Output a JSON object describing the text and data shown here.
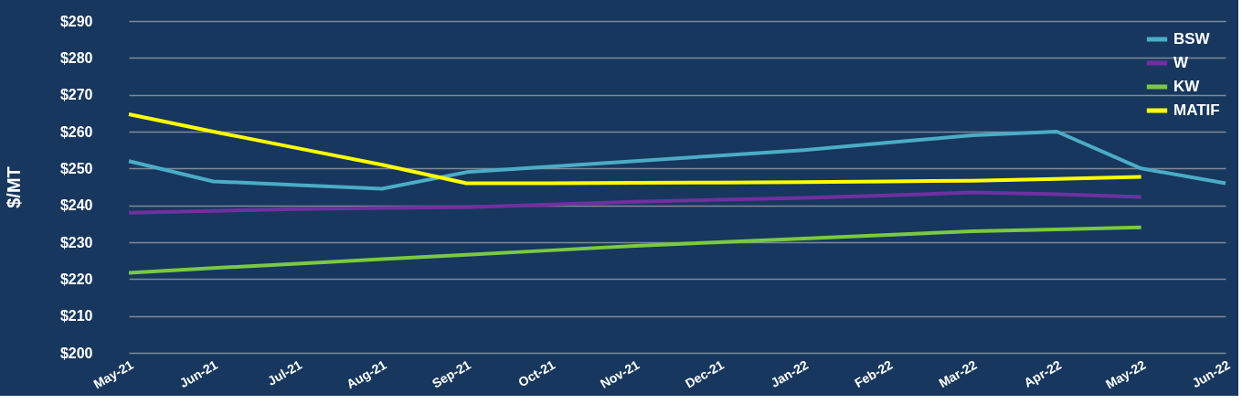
{
  "chart_data": {
    "type": "line",
    "ylabel": "$/MT",
    "categories": [
      "May-21",
      "Jun-21",
      "Jul-21",
      "Aug-21",
      "Sep-21",
      "Oct-21",
      "Nov-21",
      "Dec-21",
      "Jan-22",
      "Feb-22",
      "Mar-22",
      "Apr-22",
      "May-22",
      "Jun-22"
    ],
    "series": [
      {
        "name": "BSW",
        "color": "#4bacc6",
        "values": [
          252,
          246.5,
          245.5,
          244.5,
          249,
          250.5,
          252,
          253.5,
          255,
          257,
          259,
          260,
          250,
          246
        ]
      },
      {
        "name": "W",
        "color": "#7030a0",
        "values": [
          238,
          238.5,
          239,
          239.3,
          239.5,
          240.2,
          241,
          241.5,
          242,
          242.7,
          243.5,
          243,
          242.3,
          null
        ]
      },
      {
        "name": "KW",
        "color": "#7ac943",
        "values": [
          221.7,
          223,
          224.2,
          225.4,
          226.6,
          227.8,
          229,
          230,
          231,
          232,
          233,
          233.5,
          234,
          null
        ]
      },
      {
        "name": "MATIF",
        "color": "#ffff00",
        "values": [
          264.7,
          260,
          255.5,
          251,
          246,
          246,
          246.1,
          246.2,
          246.3,
          246.5,
          246.7,
          247.2,
          247.7,
          null
        ]
      }
    ],
    "ylim": [
      200,
      290
    ],
    "yticks": [
      {
        "value": 200,
        "label": "$200"
      },
      {
        "value": 210,
        "label": "$210"
      },
      {
        "value": 220,
        "label": "$220"
      },
      {
        "value": 230,
        "label": "$230"
      },
      {
        "value": 240,
        "label": "$240"
      },
      {
        "value": 250,
        "label": "$250"
      },
      {
        "value": 260,
        "label": "$260"
      },
      {
        "value": 270,
        "label": "$270"
      },
      {
        "value": 280,
        "label": "$280"
      },
      {
        "value": 290,
        "label": "$290"
      }
    ],
    "grid": "y",
    "legend": "top right",
    "marker": "none",
    "line_style": "solid"
  }
}
